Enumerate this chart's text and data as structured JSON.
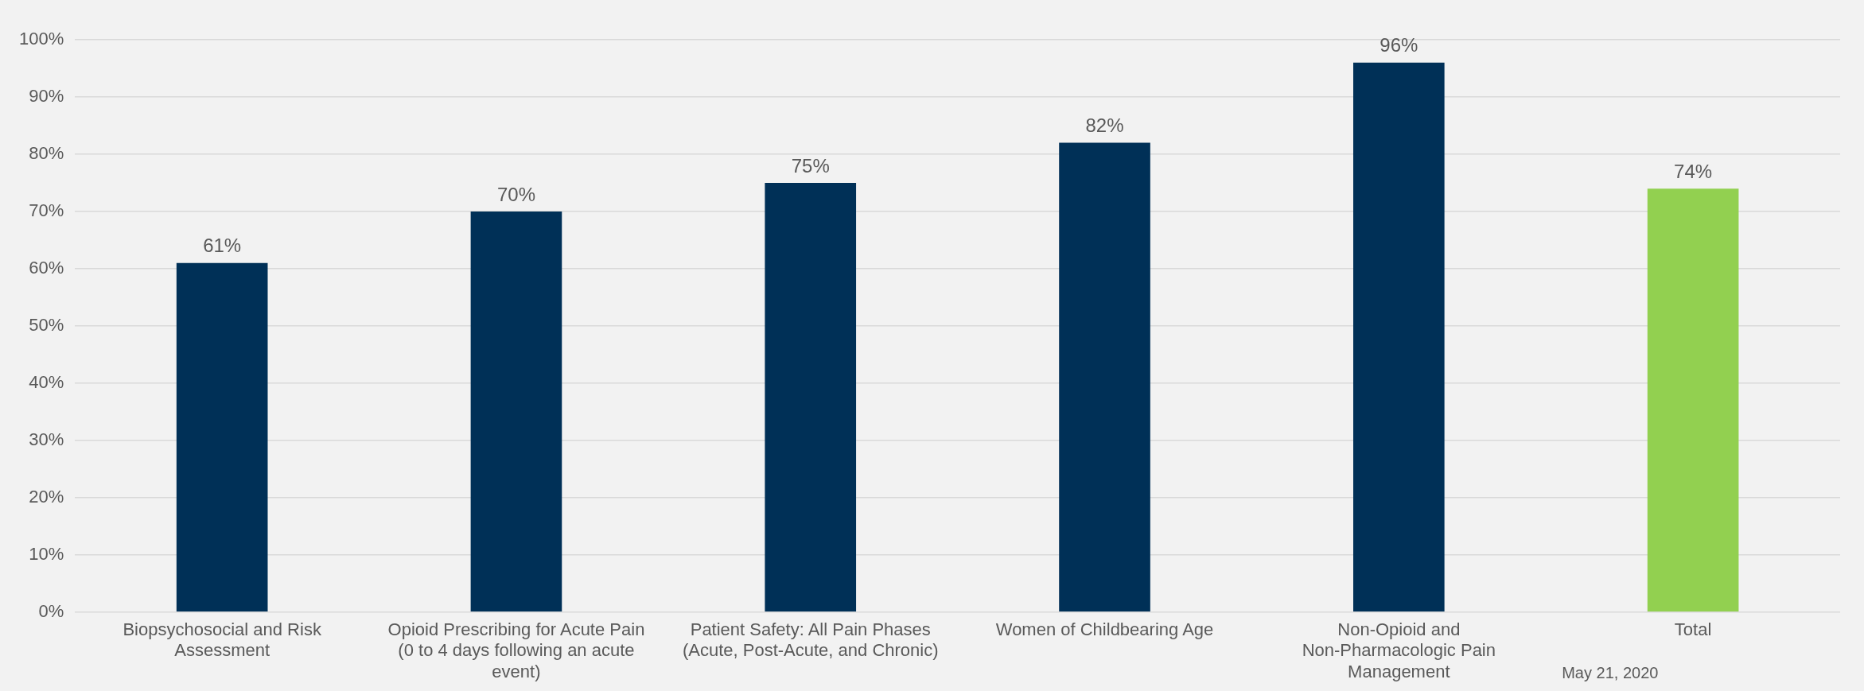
{
  "chart_data": {
    "type": "bar",
    "categories": [
      "Biopsychosocial and Risk Assessment",
      "Opioid Prescribing for Acute Pain (0 to 4 days following an acute event)",
      "Patient Safety: All Pain Phases (Acute, Post-Acute, and Chronic)",
      "Women of Childbearing Age",
      "Non-Opioid and Non-Pharmacologic Pain Management",
      "Total"
    ],
    "values": [
      61,
      70,
      75,
      82,
      96,
      74
    ],
    "colors": [
      "#003057",
      "#003057",
      "#003057",
      "#003057",
      "#003057",
      "#92d050"
    ],
    "data_labels": true,
    "value_labels": [
      "61%",
      "70%",
      "75%",
      "82%",
      "96%",
      "74%"
    ],
    "ylim": [
      0,
      100
    ],
    "yticks": [
      {
        "value": 0,
        "label": "0%"
      },
      {
        "value": 10,
        "label": "10%"
      },
      {
        "value": 20,
        "label": "20%"
      },
      {
        "value": 30,
        "label": "30%"
      },
      {
        "value": 40,
        "label": "40%"
      },
      {
        "value": 50,
        "label": "50%"
      },
      {
        "value": 60,
        "label": "60%"
      },
      {
        "value": 70,
        "label": "70%"
      },
      {
        "value": 80,
        "label": "80%"
      },
      {
        "value": 90,
        "label": "90%"
      },
      {
        "value": 100,
        "label": "100%"
      }
    ],
    "grid": "y",
    "legend": false,
    "annotations": [
      "May 21, 2020"
    ]
  }
}
